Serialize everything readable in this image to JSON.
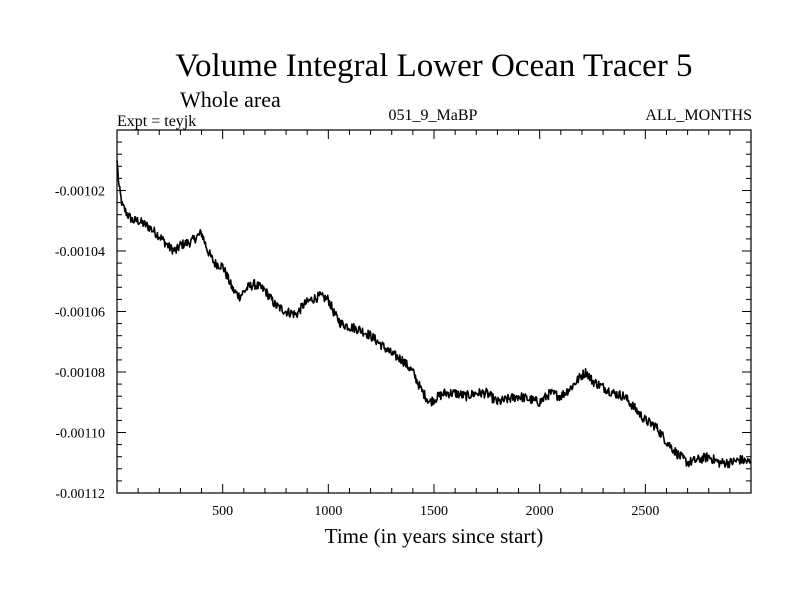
{
  "chart_data": {
    "type": "line",
    "title": "Volume Integral Lower Ocean Tracer 5",
    "subtitle": "Whole area",
    "header_left": "Expt = teyjk",
    "header_center": "051_9_MaBP",
    "header_right": "ALL_MONTHS",
    "xlabel": "Time (in years since start)",
    "ylabel": "",
    "xlim": [
      0,
      3000
    ],
    "ylim": [
      -0.00112,
      -0.001
    ],
    "xticks": [
      500,
      1000,
      1500,
      2000,
      2500
    ],
    "xtick_labels": [
      "500",
      "1000",
      "1500",
      "2000",
      "2500"
    ],
    "yticks": [
      -0.00102,
      -0.00104,
      -0.00106,
      -0.00108,
      -0.0011,
      -0.00112
    ],
    "ytick_labels": [
      "-0.00102",
      "-0.00104",
      "-0.00106",
      "-0.00108",
      "-0.00110",
      "-0.00112"
    ],
    "grid": false,
    "line_color": "#000000",
    "series": [
      {
        "name": "Volume Integral Lower Ocean Tracer 5",
        "x": [
          0,
          10,
          25,
          50,
          75,
          100,
          150,
          200,
          250,
          280,
          300,
          350,
          400,
          430,
          460,
          500,
          550,
          580,
          620,
          650,
          700,
          750,
          800,
          850,
          880,
          920,
          960,
          1000,
          1030,
          1060,
          1100,
          1150,
          1200,
          1250,
          1300,
          1350,
          1400,
          1440,
          1480,
          1500,
          1550,
          1600,
          1650,
          1700,
          1750,
          1800,
          1850,
          1900,
          1950,
          2000,
          2050,
          2100,
          2150,
          2200,
          2220,
          2250,
          2300,
          2350,
          2400,
          2450,
          2500,
          2550,
          2600,
          2650,
          2700,
          2750,
          2800,
          2850,
          2900,
          2950,
          3000
        ],
        "y": [
          -0.00101,
          -0.001019,
          -0.001025,
          -0.001028,
          -0.00103,
          -0.00103,
          -0.001032,
          -0.001035,
          -0.001039,
          -0.00104,
          -0.001038,
          -0.001037,
          -0.001034,
          -0.00104,
          -0.001044,
          -0.001045,
          -0.001053,
          -0.001055,
          -0.001052,
          -0.001051,
          -0.001053,
          -0.001058,
          -0.00106,
          -0.001061,
          -0.001058,
          -0.001056,
          -0.001055,
          -0.001056,
          -0.001061,
          -0.001064,
          -0.001065,
          -0.001066,
          -0.001068,
          -0.001071,
          -0.001074,
          -0.001076,
          -0.00108,
          -0.001086,
          -0.00109,
          -0.001089,
          -0.001087,
          -0.001087,
          -0.001088,
          -0.001087,
          -0.001087,
          -0.00109,
          -0.001089,
          -0.001088,
          -0.001089,
          -0.00109,
          -0.001087,
          -0.001088,
          -0.001085,
          -0.001081,
          -0.00108,
          -0.001083,
          -0.001085,
          -0.001087,
          -0.001088,
          -0.001092,
          -0.001096,
          -0.001098,
          -0.001103,
          -0.001107,
          -0.00111,
          -0.001109,
          -0.001108,
          -0.00111,
          -0.00111,
          -0.001109,
          -0.00111
        ]
      }
    ]
  }
}
